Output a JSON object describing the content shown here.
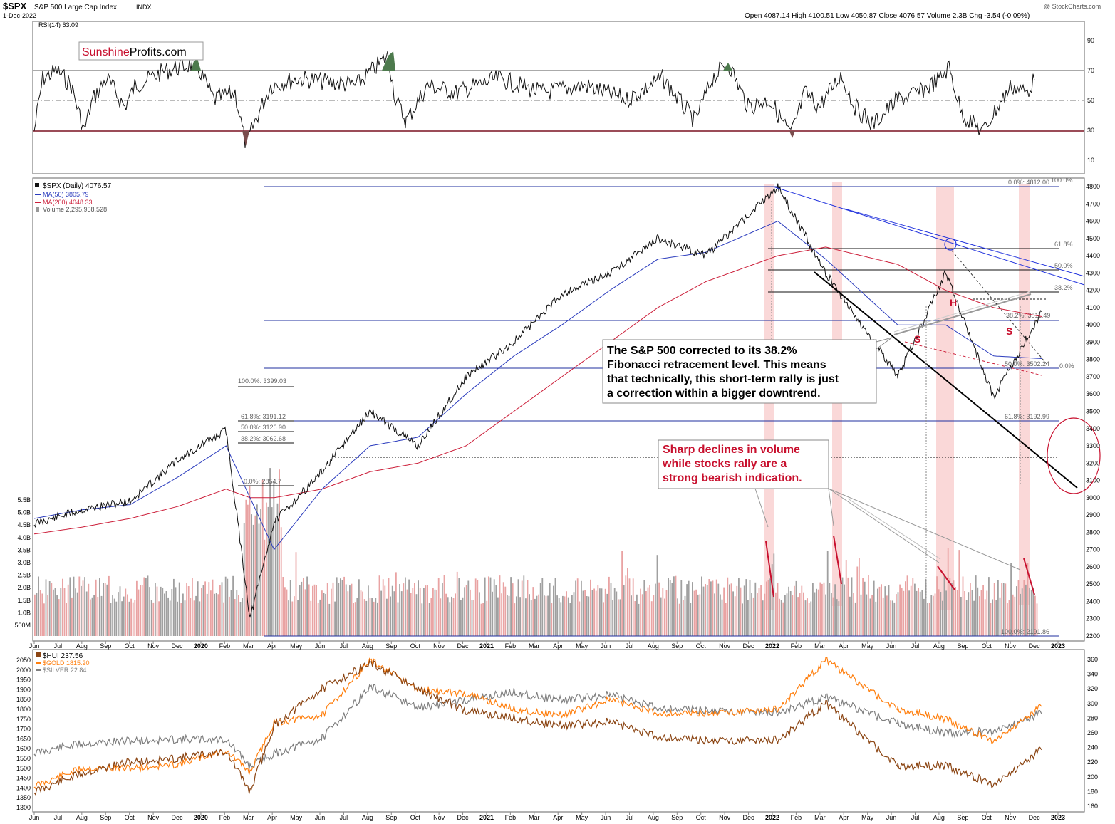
{
  "header": {
    "symbol": "$SPX",
    "name": "S&P 500 Large Cap Index",
    "exchange": "INDX",
    "date": "1-Dec-2022",
    "ohlc_text": "Open 4087.14  High 4100.51  Low 4050.87  Close 4076.57  Volume 2.3B  Chg -3.54 (-0.09%)",
    "watermark": "@ StockCharts.com"
  },
  "brand": {
    "part1": "Sunshine",
    "part2": "Profits.com"
  },
  "colors": {
    "price": "#111111",
    "ma50": "#2a3bbd",
    "ma200": "#cc1f3a",
    "fib": "#1f2f9f",
    "band": "#f4a8a8",
    "volume_gray": "#9a9a9a",
    "volume_red": "#e9a3a3",
    "hui": "#8b4513",
    "gold": "#ff7f0e",
    "silver": "#7f7f7f",
    "accent": "#c8102e"
  },
  "x_months": [
    "Jun",
    "Jul",
    "Aug",
    "Sep",
    "Oct",
    "Nov",
    "Dec",
    "2020",
    "Feb",
    "Mar",
    "Apr",
    "May",
    "Jun",
    "Jul",
    "Aug",
    "Sep",
    "Oct",
    "Nov",
    "Dec",
    "2021",
    "Feb",
    "Mar",
    "Apr",
    "May",
    "Jun",
    "Jul",
    "Aug",
    "Sep",
    "Oct",
    "Nov",
    "Dec",
    "2022",
    "Feb",
    "Mar",
    "Apr",
    "May",
    "Jun",
    "Jul",
    "Aug",
    "Sep",
    "Oct",
    "Nov",
    "Dec",
    "2023"
  ],
  "rsi_panel": {
    "legend": "RSI(14) 63.09",
    "ticks": [
      "90",
      "70",
      "50",
      "30",
      "10"
    ]
  },
  "price_panel": {
    "legend": [
      "$SPX (Daily) 4076.57",
      "MA(50) 3805.79",
      "MA(200) 4048.33",
      "Volume 2,295,958,528"
    ],
    "y_ticks": [
      "4800",
      "4700",
      "4600",
      "4500",
      "4400",
      "4300",
      "4200",
      "4100",
      "4000",
      "3900",
      "3800",
      "3700",
      "3600",
      "3500",
      "3400",
      "3300",
      "3200",
      "3100",
      "3000",
      "2900",
      "2800",
      "2700",
      "2600",
      "2500",
      "2400",
      "2300",
      "2200"
    ],
    "vol_ticks": [
      "5.5B",
      "5.0B",
      "4.5B",
      "4.0B",
      "3.5B",
      "3.0B",
      "2.5B",
      "2.0B",
      "1.5B",
      "1.0B",
      "500M"
    ],
    "fib_labels": [
      "0.0%: 4812.00",
      "100.0%",
      "61.8%",
      "50.0%",
      "38.2%",
      "38.2%: 3811.49",
      "50.0%: 3502.24",
      "0.0%",
      "61.8%: 3192.99",
      "100.0%: 2191.86",
      "100.0%: 3399.03",
      "61.8%: 3191.12",
      "50.0%: 3126.90",
      "38.2%: 3062.68",
      "0.0%: 2854.7"
    ],
    "pattern_labels": [
      "S",
      "H",
      "S"
    ],
    "annotation_black": [
      "The S&P 500 corrected to its 38.2%",
      "Fibonacci retracement level. This means",
      "that technically, this short-term rally is just",
      "a correction within a bigger downtrend."
    ],
    "annotation_red": [
      "Sharp declines in volume",
      "while stocks rally are a",
      "strong bearish indication."
    ]
  },
  "metals_panel": {
    "legend": [
      "$HUI 237.56",
      "$GOLD 1815.20",
      "$SILVER 22.84"
    ],
    "left_ticks": [
      "2050",
      "2000",
      "1950",
      "1900",
      "1850",
      "1800",
      "1750",
      "1700",
      "1650",
      "1600",
      "1550",
      "1500",
      "1450",
      "1400",
      "1350",
      "1300"
    ],
    "right_ticks": [
      "360",
      "340",
      "320",
      "300",
      "280",
      "260",
      "240",
      "220",
      "200",
      "180",
      "160"
    ]
  },
  "chart_data": {
    "type": "line",
    "title": "$SPX S&P 500 Large Cap Index",
    "x": [
      "2019-06",
      "2019-08",
      "2019-10",
      "2019-12",
      "2020-02",
      "2020-03",
      "2020-04",
      "2020-06",
      "2020-08",
      "2020-10",
      "2020-12",
      "2021-02",
      "2021-04",
      "2021-06",
      "2021-08",
      "2021-10",
      "2022-01",
      "2022-03",
      "2022-06",
      "2022-08",
      "2022-10",
      "2022-12"
    ],
    "series": [
      {
        "name": "$SPX",
        "values": [
          2850,
          2930,
          2980,
          3220,
          3390,
          2300,
          2860,
          3150,
          3500,
          3300,
          3700,
          3900,
          4180,
          4300,
          4500,
          4400,
          4800,
          4300,
          3700,
          4300,
          3580,
          4076
        ]
      },
      {
        "name": "MA(50)",
        "values": [
          2880,
          2930,
          2960,
          3120,
          3300,
          3000,
          2700,
          3050,
          3300,
          3350,
          3600,
          3820,
          4000,
          4200,
          4380,
          4420,
          4600,
          4380,
          4000,
          4000,
          3820,
          3805
        ]
      },
      {
        "name": "MA(200)",
        "values": [
          2790,
          2830,
          2880,
          2950,
          3050,
          3000,
          3000,
          3050,
          3150,
          3200,
          3300,
          3500,
          3700,
          3900,
          4100,
          4250,
          4400,
          4450,
          4350,
          4200,
          4100,
          4048
        ]
      },
      {
        "name": "$HUI",
        "values": [
          180,
          205,
          220,
          225,
          235,
          180,
          270,
          320,
          355,
          320,
          290,
          280,
          270,
          275,
          255,
          250,
          250,
          300,
          215,
          215,
          190,
          237
        ]
      },
      {
        "name": "$GOLD",
        "values": [
          1410,
          1500,
          1500,
          1520,
          1590,
          1480,
          1730,
          1770,
          2050,
          1900,
          1880,
          1800,
          1770,
          1850,
          1780,
          1780,
          1800,
          2050,
          1800,
          1750,
          1640,
          1815
        ]
      },
      {
        "name": "$SILVER",
        "values": [
          15.2,
          17.0,
          17.5,
          17.8,
          17.8,
          12.5,
          15.0,
          18.0,
          28.0,
          24.0,
          25.5,
          27.0,
          25.5,
          26.5,
          24.0,
          23.5,
          23.0,
          26.0,
          21.0,
          19.0,
          19.5,
          22.84
        ]
      }
    ],
    "rsi_last": 63.09,
    "ylim": [
      2200,
      4850
    ],
    "fib_levels": [
      4812.0,
      4304.0,
      4157.0,
      4001.0,
      3811.49,
      3502.24,
      3192.99,
      2191.86,
      3399.03,
      3191.12,
      3126.9,
      3062.68,
      2854.7
    ]
  }
}
